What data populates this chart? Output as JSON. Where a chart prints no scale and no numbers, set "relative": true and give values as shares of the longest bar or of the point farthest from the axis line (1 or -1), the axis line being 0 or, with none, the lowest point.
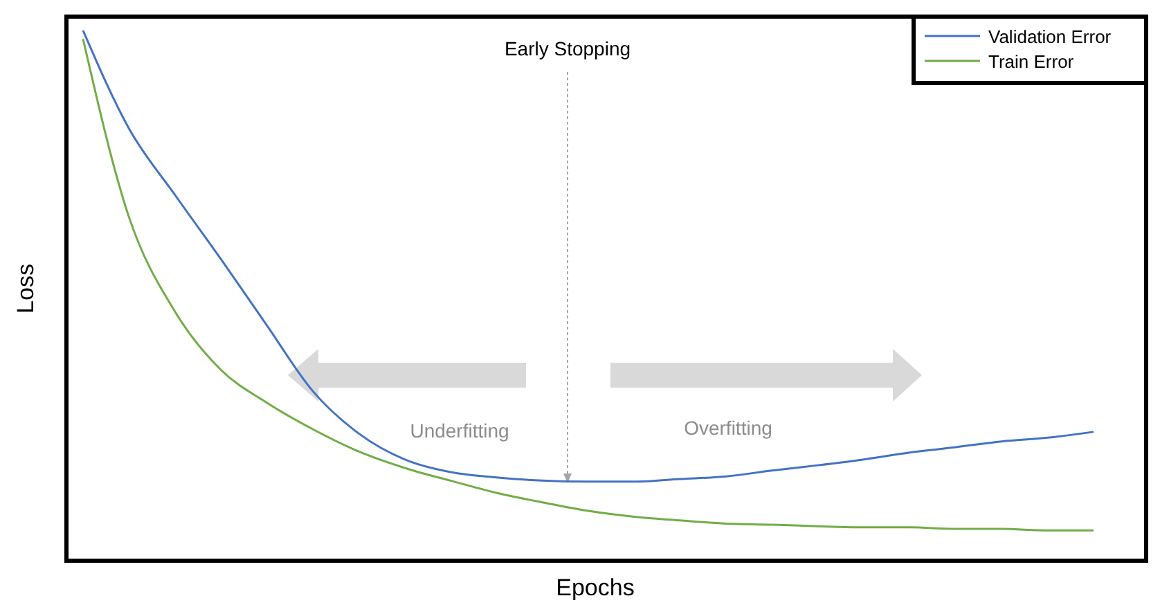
{
  "chart_data": {
    "type": "line",
    "relative": true,
    "xlabel": "Epochs",
    "ylabel": "Loss",
    "legend": "top right",
    "categories": [
      null,
      null,
      null,
      null,
      null,
      null,
      null,
      null,
      null,
      null,
      null,
      null,
      null,
      null,
      null,
      null,
      null,
      null,
      null,
      null,
      null,
      null,
      null
    ],
    "series": [
      {
        "name": "Validation Error",
        "color": "#4472c4",
        "values": [
          1.0,
          0.815,
          0.69,
          0.569,
          0.444,
          0.32,
          0.24,
          0.191,
          0.167,
          0.157,
          0.151,
          0.149,
          0.149,
          0.154,
          0.159,
          0.17,
          0.18,
          0.191,
          0.204,
          0.214,
          0.225,
          0.232,
          0.243
        ]
      },
      {
        "name": "Train Error",
        "color": "#70ad47",
        "values": [
          0.984,
          0.648,
          0.47,
          0.36,
          0.298,
          0.248,
          0.206,
          0.175,
          0.151,
          0.128,
          0.11,
          0.094,
          0.083,
          0.076,
          0.07,
          0.068,
          0.065,
          0.063,
          0.063,
          0.06,
          0.06,
          0.057,
          0.057
        ]
      }
    ],
    "annotations": [
      "Early Stopping",
      "Underfitting",
      "Overfitting"
    ]
  }
}
